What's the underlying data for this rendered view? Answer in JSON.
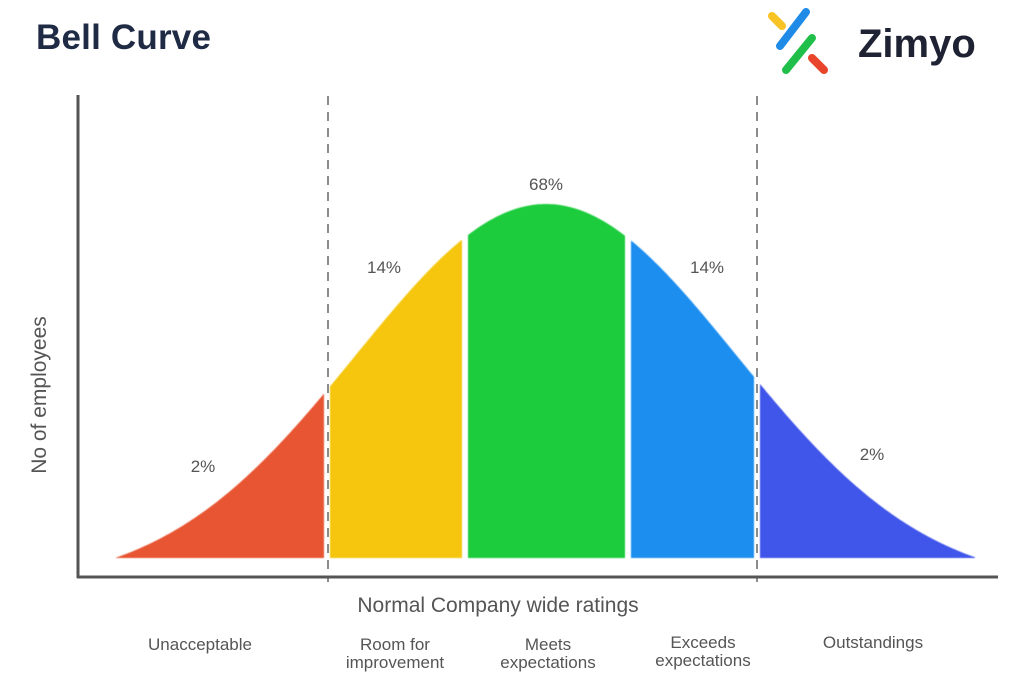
{
  "header": {
    "title": "Bell Curve"
  },
  "brand": {
    "name": "Zimyo",
    "logo_icon": "zimyo-logo-icon",
    "colors": [
      "#f7c325",
      "#1f8be6",
      "#1fbf4a",
      "#e8452c"
    ]
  },
  "chart_data": {
    "type": "area",
    "title": "Bell Curve",
    "xlabel": "Normal Company wide ratings",
    "ylabel": "No of employees",
    "grid": false,
    "legend": "none",
    "segments": [
      {
        "category": "Unacceptable",
        "value_label": "2%",
        "color": "#e85530"
      },
      {
        "category": "Room for\nimprovement",
        "value_label": "14%",
        "color": "#f5c60c"
      },
      {
        "category": "Meets\nexpectations",
        "value_label": "68%",
        "color": "#1fcc3d"
      },
      {
        "category": "Exceeds\nexpectations",
        "value_label": "14%",
        "color": "#1e8ef0"
      },
      {
        "category": "Outstandings",
        "value_label": "2%",
        "color": "#3f55ea"
      }
    ]
  }
}
